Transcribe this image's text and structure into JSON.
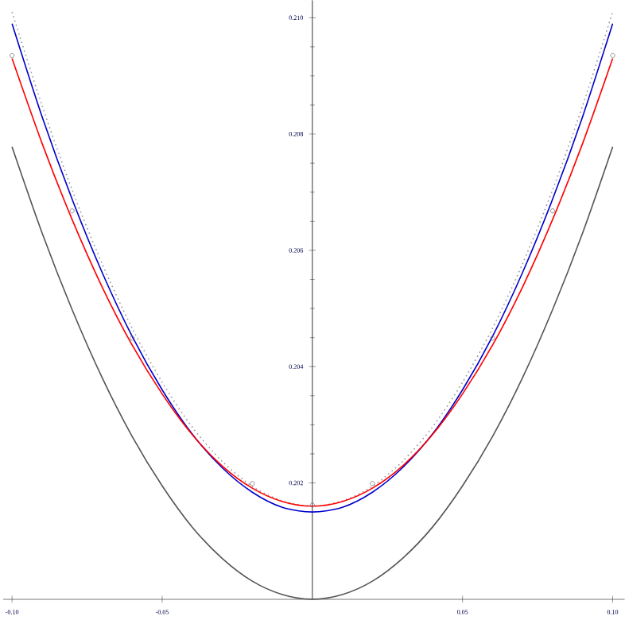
{
  "chart_data": {
    "type": "line",
    "x": [
      -0.1,
      -0.09,
      -0.08,
      -0.07,
      -0.06,
      -0.05,
      -0.04,
      -0.03,
      -0.02,
      -0.01,
      0,
      0.01,
      0.02,
      0.03,
      0.04,
      0.05,
      0.06,
      0.07,
      0.08,
      0.09,
      0.1
    ],
    "series": [
      {
        "color": "#555555",
        "line_style": "solid",
        "values": [
          0.20778,
          0.2063,
          0.20498,
          0.20381,
          0.2028,
          0.20195,
          0.20124,
          0.2007,
          0.20031,
          0.20008,
          0.2,
          0.20008,
          0.20031,
          0.2007,
          0.20124,
          0.20195,
          0.2028,
          0.20381,
          0.20498,
          0.2063,
          0.20778
        ]
      },
      {
        "color": "#999999",
        "line_style": "dotted",
        "values": [
          0.2101,
          0.20849,
          0.20704,
          0.20577,
          0.20466,
          0.20373,
          0.20296,
          0.20237,
          0.20194,
          0.20169,
          0.2016,
          0.20169,
          0.20194,
          0.20237,
          0.20296,
          0.20373,
          0.20466,
          0.20577,
          0.20704,
          0.20849,
          0.2101
        ]
      },
      {
        "color": "#0000cc",
        "line_style": "solid",
        "values": [
          0.2099,
          0.2083,
          0.20688,
          0.20562,
          0.20452,
          0.2036,
          0.20284,
          0.20226,
          0.20184,
          0.20158,
          0.2015,
          0.20158,
          0.20184,
          0.20226,
          0.20284,
          0.2036,
          0.20452,
          0.20562,
          0.20688,
          0.2083,
          0.2099
        ]
      },
      {
        "color": "#ff0000",
        "line_style": "solid",
        "values": [
          0.2093,
          0.20784,
          0.20653,
          0.20537,
          0.20437,
          0.20353,
          0.20283,
          0.20229,
          0.20191,
          0.20168,
          0.2016,
          0.20168,
          0.20191,
          0.20229,
          0.20283,
          0.20353,
          0.20437,
          0.20537,
          0.20653,
          0.20784,
          0.2093
        ]
      },
      {
        "type": "scatter",
        "color": "#777777",
        "marker": "circle",
        "x": [
          -0.1,
          -0.08,
          -0.06,
          -0.02,
          0,
          0.02,
          0.06,
          0.08,
          0.1
        ],
        "values": [
          0.20935,
          0.20668,
          0.20449,
          0.20199,
          0.20162,
          0.20199,
          0.20449,
          0.20668,
          0.20935
        ]
      }
    ],
    "xlim": [
      -0.103,
      0.104
    ],
    "ylim": [
      0.2,
      0.2103
    ],
    "xticks": [
      {
        "value": -0.1,
        "label": "-0.10"
      },
      {
        "value": -0.05,
        "label": "-0.05"
      },
      {
        "value": 0.05,
        "label": "0.05"
      },
      {
        "value": 0.1,
        "label": "0.10"
      }
    ],
    "yticks": [
      0.202,
      0.204,
      0.206,
      0.208,
      {
        "value": 0.21,
        "label": "0.210"
      }
    ],
    "grid": false
  }
}
